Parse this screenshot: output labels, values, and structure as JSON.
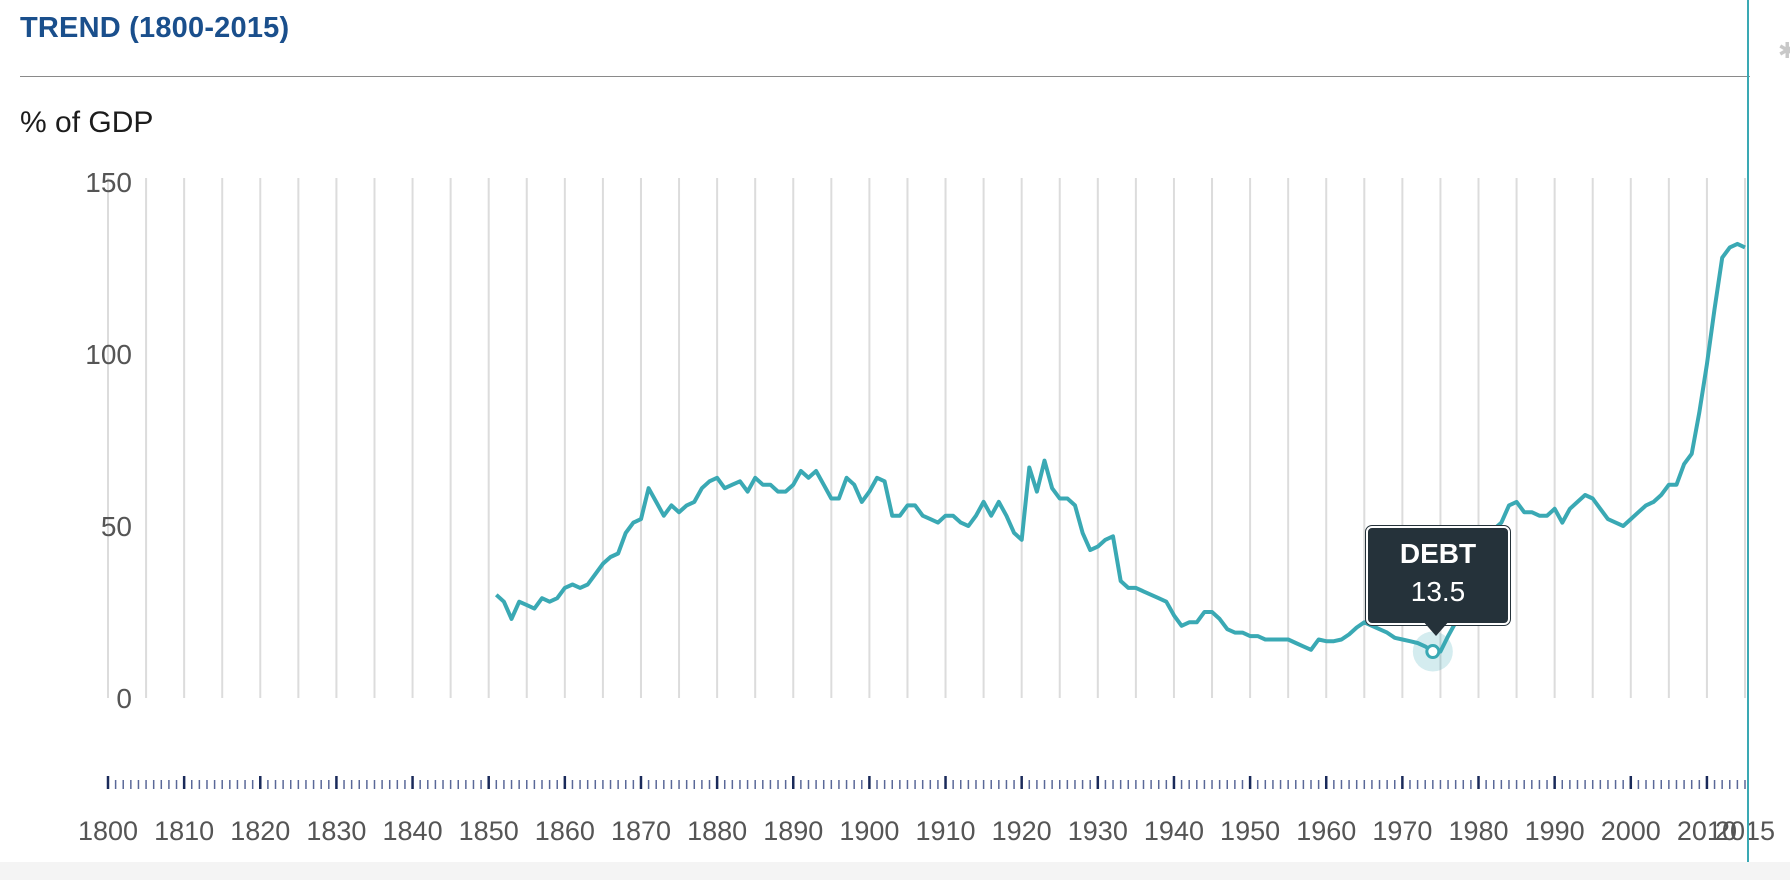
{
  "header": {
    "title": "TREND (1800-2015)"
  },
  "chart_data": {
    "type": "line",
    "title": "TREND (1800-2015)",
    "ylabel": "% of GDP",
    "xlim": [
      1800,
      2015
    ],
    "ylim": [
      0,
      150
    ],
    "y_ticks": [
      "0",
      "50",
      "100",
      "150"
    ],
    "x_ticks": [
      "1800",
      "1810",
      "1820",
      "1830",
      "1840",
      "1850",
      "1860",
      "1870",
      "1880",
      "1890",
      "1900",
      "1910",
      "1920",
      "1930",
      "1940",
      "1950",
      "1960",
      "1970",
      "1980",
      "1990",
      "2000",
      "2010",
      "2015"
    ],
    "grid": "vertical",
    "line_color": "#3aa9b4",
    "series": [
      {
        "name": "DEBT",
        "x": [
          1851,
          1852,
          1853,
          1854,
          1855,
          1856,
          1857,
          1858,
          1859,
          1860,
          1861,
          1862,
          1863,
          1864,
          1865,
          1866,
          1867,
          1868,
          1869,
          1870,
          1871,
          1872,
          1873,
          1874,
          1875,
          1876,
          1877,
          1878,
          1879,
          1880,
          1881,
          1882,
          1883,
          1884,
          1885,
          1886,
          1887,
          1888,
          1889,
          1890,
          1891,
          1892,
          1893,
          1894,
          1895,
          1896,
          1897,
          1898,
          1899,
          1900,
          1901,
          1902,
          1903,
          1904,
          1905,
          1906,
          1907,
          1908,
          1909,
          1910,
          1911,
          1912,
          1913,
          1914,
          1915,
          1916,
          1917,
          1918,
          1919,
          1920,
          1921,
          1922,
          1923,
          1924,
          1925,
          1926,
          1927,
          1928,
          1929,
          1930,
          1931,
          1932,
          1933,
          1934,
          1935,
          1936,
          1937,
          1938,
          1939,
          1940,
          1941,
          1942,
          1943,
          1944,
          1945,
          1946,
          1947,
          1948,
          1949,
          1950,
          1951,
          1952,
          1953,
          1954,
          1955,
          1956,
          1957,
          1958,
          1959,
          1960,
          1961,
          1962,
          1963,
          1964,
          1965,
          1966,
          1967,
          1968,
          1969,
          1970,
          1971,
          1972,
          1973,
          1974,
          1975,
          1976,
          1977,
          1978,
          1979,
          1980,
          1981,
          1982,
          1983,
          1984,
          1985,
          1986,
          1987,
          1988,
          1989,
          1990,
          1991,
          1992,
          1993,
          1994,
          1995,
          1996,
          1997,
          1998,
          1999,
          2000,
          2001,
          2002,
          2003,
          2004,
          2005,
          2006,
          2007,
          2008,
          2009,
          2010,
          2011,
          2012,
          2013,
          2014,
          2015
        ],
        "y": [
          30,
          28,
          23,
          28,
          27,
          26,
          29,
          28,
          29,
          32,
          33,
          32,
          33,
          36,
          39,
          41,
          42,
          48,
          51,
          52,
          61,
          57,
          53,
          56,
          54,
          56,
          57,
          61,
          63,
          64,
          61,
          62,
          63,
          60,
          64,
          62,
          62,
          60,
          60,
          62,
          66,
          64,
          66,
          62,
          58,
          58,
          64,
          62,
          57,
          60,
          64,
          63,
          53,
          53,
          56,
          56,
          53,
          52,
          51,
          53,
          53,
          51,
          50,
          53,
          57,
          53,
          57,
          53,
          48,
          46,
          67,
          60,
          69,
          61,
          58,
          58,
          56,
          48,
          43,
          44,
          46,
          47,
          34,
          32,
          32,
          31,
          30,
          29,
          28,
          24,
          21,
          22,
          22,
          25,
          25,
          23,
          20,
          19,
          19,
          18,
          18,
          17,
          17,
          17,
          17,
          16,
          15,
          14,
          17,
          16.5,
          16.5,
          17,
          18.5,
          20.5,
          22,
          21,
          20,
          19,
          17.5,
          17,
          16.5,
          16,
          15,
          13.5,
          13.5,
          18,
          22,
          26,
          32,
          38,
          44,
          49,
          51,
          56,
          57,
          54,
          54,
          53,
          53,
          55,
          51,
          55,
          57,
          59,
          58,
          55,
          52,
          51,
          50,
          52,
          54,
          56,
          57,
          59,
          62,
          62,
          68,
          71,
          83,
          97,
          113,
          128,
          131,
          132,
          131
        ]
      }
    ],
    "highlight": {
      "series": "DEBT",
      "x": 1974,
      "y": 13.5
    }
  },
  "tooltip": {
    "name": "DEBT",
    "value": "13.5"
  }
}
